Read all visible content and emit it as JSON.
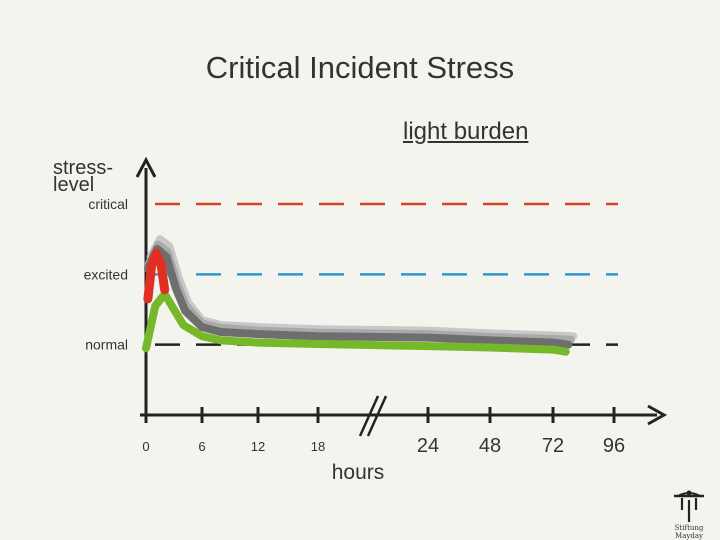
{
  "title": "Critical Incident Stress",
  "subtitle": "light burden",
  "logo": {
    "text": "Stiftung Mayday"
  },
  "chart_data": {
    "type": "line",
    "title": "Critical Incident Stress",
    "subtitle": "light burden",
    "ylabel_line1": "stress-",
    "ylabel_line2": "level",
    "xlabel": "hours",
    "x_tick_labels": [
      "0",
      "6",
      "12",
      "18",
      "24",
      "48",
      "72",
      "96"
    ],
    "axis_break": "between 18 and 24",
    "reference_levels": [
      {
        "label": "critical",
        "level": 3,
        "color": "#d6452b"
      },
      {
        "label": "excited",
        "level": 2,
        "color": "#2f96d0"
      },
      {
        "label": "normal",
        "level": 1,
        "color": "#222222"
      }
    ],
    "ylim": [
      0,
      3.5
    ],
    "series": [
      {
        "color": "#c8c8c8",
        "x": [
          0.5,
          1.5,
          2.5,
          3.5,
          4.5,
          6,
          8,
          12,
          18,
          24,
          48,
          72,
          80
        ],
        "y": [
          2.25,
          2.5,
          2.4,
          1.95,
          1.6,
          1.35,
          1.28,
          1.25,
          1.22,
          1.2,
          1.16,
          1.13,
          1.12
        ]
      },
      {
        "color": "#a9a9a9",
        "x": [
          0.3,
          1.3,
          2.3,
          3.3,
          4.3,
          6,
          8,
          12,
          18,
          24,
          48,
          72,
          79
        ],
        "y": [
          2.15,
          2.42,
          2.32,
          1.88,
          1.55,
          1.3,
          1.24,
          1.2,
          1.17,
          1.15,
          1.11,
          1.08,
          1.07
        ]
      },
      {
        "color": "#6e6e6e",
        "x": [
          0.2,
          1.2,
          2.2,
          3.2,
          4.2,
          6,
          8,
          12,
          18,
          24,
          48,
          72,
          78
        ],
        "y": [
          2.08,
          2.36,
          2.25,
          1.8,
          1.48,
          1.25,
          1.18,
          1.15,
          1.12,
          1.1,
          1.06,
          1.03,
          1.0
        ]
      },
      {
        "color": "#76b82a",
        "x": [
          0,
          1,
          2,
          3,
          4,
          6,
          8,
          12,
          18,
          24,
          48,
          72,
          77
        ],
        "y": [
          0.95,
          1.55,
          1.72,
          1.5,
          1.28,
          1.12,
          1.06,
          1.03,
          1.01,
          0.98,
          0.96,
          0.93,
          0.9
        ]
      },
      {
        "color": "#e03024",
        "x": [
          0.2,
          0.6,
          1.1,
          1.6,
          2.0
        ],
        "y": [
          1.65,
          2.12,
          2.3,
          2.15,
          1.78
        ]
      }
    ]
  }
}
